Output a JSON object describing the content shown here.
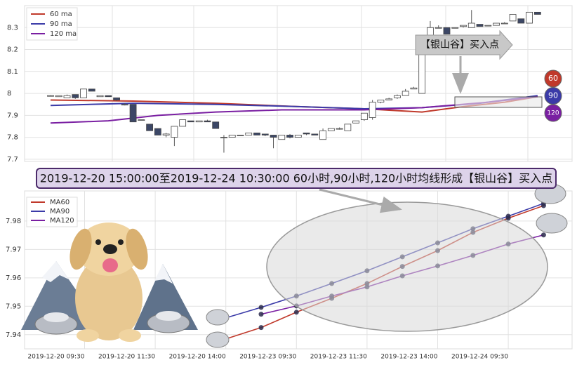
{
  "banner": "2019-12-20 15:00:00至2019-12-24 10:30:00 60小时,90小时,120小时均线形成【银山谷】买入点",
  "chart_data": [
    {
      "type": "candlestick",
      "ylim": [
        7.69,
        8.4
      ],
      "yticks": [
        7.7,
        7.8,
        7.9,
        8.0,
        8.1,
        8.2,
        8.3
      ],
      "grid": true,
      "up_color": "#ffffff",
      "down_color": "#3c4766",
      "open": [
        7.99,
        7.985,
        7.98,
        7.995,
        7.98,
        8.02,
        7.985,
        7.99,
        7.98,
        7.95,
        7.95,
        7.88,
        7.86,
        7.84,
        7.81,
        7.8,
        7.85,
        7.875,
        7.87,
        7.875,
        7.87,
        7.8,
        7.8,
        7.81,
        7.81,
        7.82,
        7.815,
        7.81,
        7.79,
        7.81,
        7.8,
        7.82,
        7.815,
        7.79,
        7.83,
        7.84,
        7.83,
        7.865,
        7.88,
        7.89,
        7.96,
        7.97,
        7.98,
        7.99,
        8.02,
        8.0,
        8.2,
        8.3,
        8.3,
        8.3,
        8.305,
        8.3,
        8.315,
        8.31,
        8.31,
        8.32,
        8.33,
        8.34,
        8.32,
        8.37
      ],
      "high": [
        7.992,
        7.99,
        7.995,
        7.995,
        8.02,
        8.02,
        7.99,
        7.99,
        7.98,
        7.955,
        7.95,
        7.88,
        7.86,
        7.84,
        7.82,
        7.85,
        7.88,
        7.875,
        7.875,
        7.88,
        7.87,
        7.81,
        7.81,
        7.81,
        7.82,
        7.82,
        7.815,
        7.81,
        7.81,
        7.815,
        7.81,
        7.82,
        7.815,
        7.84,
        7.84,
        7.845,
        7.86,
        7.875,
        7.91,
        7.97,
        7.97,
        7.98,
        7.995,
        8.02,
        8.03,
        8.25,
        8.33,
        8.31,
        8.3,
        8.3,
        8.31,
        8.38,
        8.315,
        8.31,
        8.32,
        8.325,
        8.36,
        8.34,
        8.37,
        8.37
      ],
      "low": [
        7.988,
        7.985,
        7.98,
        7.975,
        7.98,
        8.01,
        7.985,
        7.985,
        7.965,
        7.945,
        7.87,
        7.88,
        7.83,
        7.81,
        7.8,
        7.76,
        7.85,
        7.87,
        7.87,
        7.87,
        7.84,
        7.73,
        7.8,
        7.81,
        7.81,
        7.81,
        7.805,
        7.75,
        7.79,
        7.795,
        7.8,
        7.81,
        7.81,
        7.79,
        7.83,
        7.835,
        7.83,
        7.865,
        7.875,
        7.88,
        7.955,
        7.97,
        7.975,
        7.99,
        8.02,
        8.0,
        8.2,
        8.3,
        8.27,
        8.3,
        8.3,
        8.3,
        8.305,
        8.31,
        8.31,
        8.32,
        8.33,
        8.32,
        8.32,
        8.36
      ],
      "close": [
        7.99,
        7.99,
        7.99,
        7.98,
        8.02,
        8.01,
        7.99,
        7.985,
        7.97,
        7.95,
        7.87,
        7.88,
        7.83,
        7.81,
        7.815,
        7.85,
        7.88,
        7.87,
        7.875,
        7.87,
        7.84,
        7.8,
        7.81,
        7.81,
        7.82,
        7.81,
        7.81,
        7.8,
        7.81,
        7.8,
        7.81,
        7.815,
        7.81,
        7.83,
        7.84,
        7.84,
        7.86,
        7.875,
        7.91,
        7.96,
        7.97,
        7.975,
        7.99,
        8.01,
        8.025,
        8.2,
        8.3,
        8.3,
        8.27,
        8.3,
        8.31,
        8.32,
        8.305,
        8.31,
        8.32,
        8.32,
        8.36,
        8.32,
        8.37,
        8.36
      ],
      "series": [
        {
          "name": "60 ma",
          "color": "#c0392b",
          "x": [
            0,
            10,
            20,
            30,
            38,
            45,
            50,
            55,
            59
          ],
          "values": [
            7.97,
            7.965,
            7.955,
            7.94,
            7.93,
            7.915,
            7.94,
            7.96,
            7.985
          ]
        },
        {
          "name": "90 ma",
          "color": "#3b3ba8",
          "x": [
            0,
            10,
            20,
            30,
            38,
            45,
            52,
            59
          ],
          "values": [
            7.945,
            7.955,
            7.95,
            7.94,
            7.93,
            7.935,
            7.955,
            7.99
          ]
        },
        {
          "name": "120 ma",
          "color": "#7a1fa2",
          "x": [
            0,
            7,
            13,
            20,
            28,
            38,
            45,
            53,
            59
          ],
          "values": [
            7.865,
            7.875,
            7.9,
            7.915,
            7.925,
            7.925,
            7.935,
            7.96,
            7.985
          ]
        }
      ],
      "annotation": "【银山谷】买入点",
      "badges": [
        {
          "text": "60",
          "color": "#c0392b"
        },
        {
          "text": "90",
          "color": "#3b3ba8"
        },
        {
          "text": "120",
          "color": "#7a1fa2"
        }
      ]
    },
    {
      "type": "line",
      "categories": [
        "2019-12-20 09:30",
        null,
        "2019-12-20 11:30",
        null,
        "2019-12-20 14:00",
        null,
        "2019-12-23 09:30",
        null,
        "2019-12-23 11:30",
        null,
        "2019-12-23 14:00",
        null,
        "2019-12-24 09:30",
        null
      ],
      "ylim": [
        7.935,
        7.9906
      ],
      "yticks": [
        7.94,
        7.95,
        7.96,
        7.97,
        7.98
      ],
      "grid": true,
      "series": [
        {
          "name": "MA60",
          "color": "#c0392b",
          "values": [
            null,
            null,
            null,
            null,
            7.9385,
            7.9425,
            7.9479,
            7.9528,
            7.958,
            7.964,
            7.9696,
            7.976,
            7.981,
            7.9854
          ]
        },
        {
          "name": "MA90",
          "color": "#3b3ba8",
          "values": [
            null,
            null,
            null,
            null,
            7.9459,
            7.9496,
            7.9536,
            7.958,
            7.9625,
            7.9674,
            7.9723,
            7.9773,
            7.9817,
            7.9862
          ]
        },
        {
          "name": "MA120",
          "color": "#7a1fa2",
          "values": [
            null,
            null,
            null,
            null,
            null,
            7.9472,
            7.9501,
            7.9536,
            7.9568,
            7.9607,
            7.9642,
            7.9679,
            7.9719,
            7.9751
          ]
        }
      ]
    }
  ]
}
